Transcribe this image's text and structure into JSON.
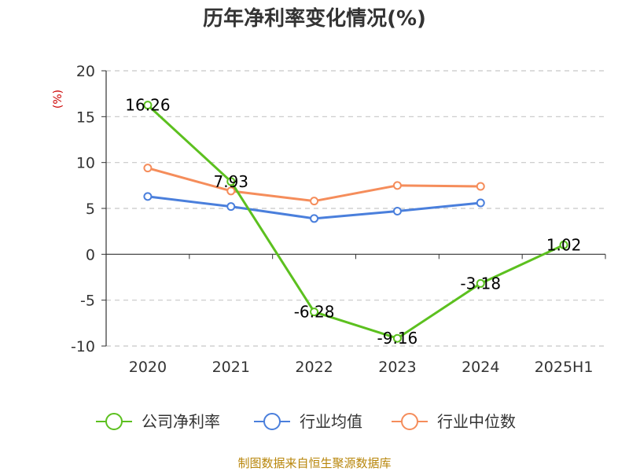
{
  "chart_data": {
    "type": "line",
    "title": "历年净利率变化情况(%)",
    "ylabel": "(%)",
    "xlabel": "",
    "categories": [
      "2020",
      "2021",
      "2022",
      "2023",
      "2024",
      "2025H1"
    ],
    "ylim": [
      -10,
      20
    ],
    "yticks": [
      20,
      15,
      10,
      5,
      0,
      -5,
      -10
    ],
    "grid": true,
    "legend_position": "bottom",
    "series": [
      {
        "name": "公司净利率",
        "color": "#5cc01f",
        "values": [
          16.26,
          7.93,
          -6.28,
          -9.16,
          -3.18,
          1.02
        ],
        "labels": [
          "16.26",
          "7.93",
          "-6.28",
          "-9.16",
          "-3.18",
          "1.02"
        ]
      },
      {
        "name": "行业均值",
        "color": "#4a7fdc",
        "values": [
          6.3,
          5.2,
          3.9,
          4.7,
          5.6,
          null
        ]
      },
      {
        "name": "行业中位数",
        "color": "#f58d5b",
        "values": [
          9.4,
          6.9,
          5.8,
          7.5,
          7.4,
          null
        ]
      }
    ]
  },
  "footer": {
    "source": "制图数据来自恒生聚源数据库"
  }
}
